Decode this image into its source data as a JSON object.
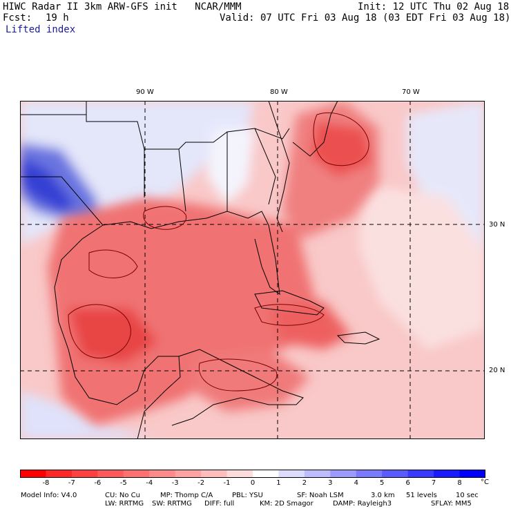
{
  "header": {
    "title": "HIWC Radar II 3km ARW-GFS init   NCAR/MMM",
    "init": "Init: 12 UTC Thu 02 Aug 18",
    "fcst_label": "Fcst:",
    "fcst_value": "19 h",
    "valid": "Valid: 07 UTC Fri 03 Aug 18 (03 EDT Fri 03 Aug 18)",
    "field": "Lifted index"
  },
  "map": {
    "lon_labels": [
      "90 W",
      "80 W",
      "70 W"
    ],
    "lat_labels": [
      "30 N",
      "20 N"
    ],
    "colors": {
      "warm_strong": "#e8202a",
      "warm_mid": "#f07070",
      "warm_light": "#f8b8b8",
      "neutral": "#ffffff",
      "cool_light": "#d8dcf8",
      "cool_mid": "#8890e8",
      "cool_strong": "#2030d8",
      "contour": "#7a0000",
      "border": "#000000"
    }
  },
  "colorbar": {
    "ticks": [
      "-8",
      "-7",
      "-6",
      "-5",
      "-4",
      "-3",
      "-2",
      "-1",
      "0",
      "1",
      "2",
      "3",
      "4",
      "5",
      "6",
      "7",
      "8"
    ],
    "unit": "°C",
    "colors": [
      "#ff0000",
      "#ff2626",
      "#ff4040",
      "#ff5a5a",
      "#ff7070",
      "#ff8a8a",
      "#ffa2a2",
      "#ffbcbc",
      "#ffdcdc",
      "#ffffff",
      "#dcdcff",
      "#bcbcff",
      "#9a9aff",
      "#7a7aff",
      "#5a5aff",
      "#3a3aff",
      "#1a1aff",
      "#0000ff"
    ]
  },
  "footer": {
    "line1": [
      "Model Info: V4.0",
      "CU: No Cu",
      "MP: Thomp C/A",
      "PBL: YSU",
      "SF: Noah LSM",
      "3.0 km",
      "51 levels",
      "10 sec"
    ],
    "line2": [
      "LW: RRTMG",
      "SW: RRTMG",
      "DIFF: full",
      "KM: 2D Smagor",
      "DAMP: Rayleigh3",
      "SFLAY: MM5"
    ]
  }
}
